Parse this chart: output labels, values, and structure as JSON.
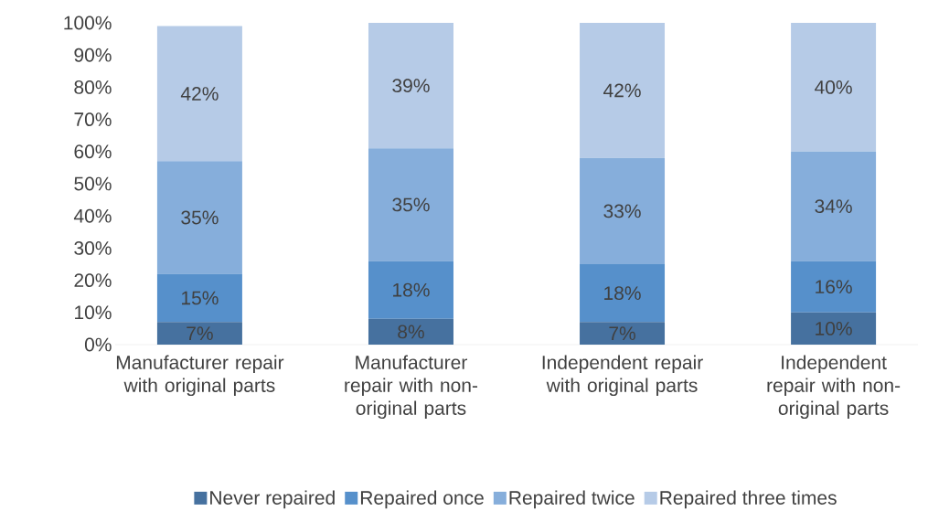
{
  "chart_data": {
    "type": "bar",
    "stacked": true,
    "categories": [
      "Manufacturer repair with original parts",
      "Manufacturer repair with non-original parts",
      "Independent repair with original parts",
      "Independent repair with non-original parts"
    ],
    "series": [
      {
        "name": "Never repaired",
        "color": "#46719f",
        "values": [
          7,
          8,
          7,
          10
        ],
        "value_labels": [
          "7%",
          "8%",
          "7%",
          "10%"
        ]
      },
      {
        "name": "Repaired once",
        "color": "#5690cb",
        "values": [
          15,
          18,
          18,
          16
        ],
        "value_labels": [
          "15%",
          "18%",
          "18%",
          "16%"
        ]
      },
      {
        "name": "Repaired twice",
        "color": "#86aedb",
        "values": [
          35,
          35,
          33,
          34
        ],
        "value_labels": [
          "35%",
          "35%",
          "33%",
          "34%"
        ]
      },
      {
        "name": "Repaired three times",
        "color": "#b6cbe7",
        "values": [
          42,
          39,
          42,
          40
        ],
        "value_labels": [
          "42%",
          "39%",
          "42%",
          "40%"
        ]
      }
    ],
    "ylim": [
      0,
      100
    ],
    "yticks": [
      {
        "value": 0,
        "label": "0%"
      },
      {
        "value": 10,
        "label": "10%"
      },
      {
        "value": 20,
        "label": "20%"
      },
      {
        "value": 30,
        "label": "30%"
      },
      {
        "value": 40,
        "label": "40%"
      },
      {
        "value": 50,
        "label": "50%"
      },
      {
        "value": 60,
        "label": "60%"
      },
      {
        "value": 70,
        "label": "70%"
      },
      {
        "value": 80,
        "label": "80%"
      },
      {
        "value": 90,
        "label": "90%"
      },
      {
        "value": 100,
        "label": "100%"
      }
    ],
    "grid": false,
    "legend": "bottom"
  }
}
